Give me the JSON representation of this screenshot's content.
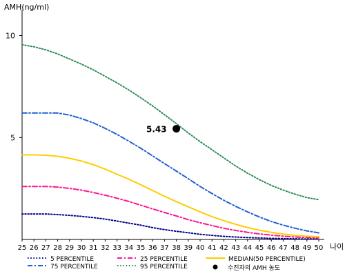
{
  "chart_data": {
    "type": "line",
    "ylabel": "AMH(ng/ml)",
    "xlabel": "나이",
    "xlim": [
      25,
      50
    ],
    "ylim": [
      0,
      11
    ],
    "yticks": [
      5,
      10
    ],
    "xticks": [
      25,
      26,
      27,
      28,
      29,
      30,
      31,
      32,
      33,
      34,
      35,
      36,
      37,
      38,
      39,
      40,
      41,
      42,
      43,
      44,
      45,
      46,
      47,
      48,
      49,
      50
    ],
    "grid": false,
    "legend_position": "bottom",
    "series": [
      {
        "name": "5 PERCENTILE",
        "color": "#00008b",
        "dash": "dot",
        "x": [
          25,
          26,
          27,
          28,
          29,
          30,
          31,
          32,
          33,
          34,
          35,
          36,
          37,
          38,
          39,
          40,
          41,
          42,
          43,
          44,
          45,
          46,
          47,
          48,
          49,
          50
        ],
        "y": [
          1.25,
          1.25,
          1.25,
          1.22,
          1.18,
          1.13,
          1.07,
          1.0,
          0.9,
          0.8,
          0.7,
          0.58,
          0.48,
          0.4,
          0.33,
          0.25,
          0.2,
          0.15,
          0.12,
          0.09,
          0.07,
          0.05,
          0.04,
          0.03,
          0.02,
          0.02
        ]
      },
      {
        "name": "25 PERCENTILE",
        "color": "#ff1493",
        "dash": "dashdot",
        "x": [
          25,
          26,
          27,
          28,
          29,
          30,
          31,
          32,
          33,
          34,
          35,
          36,
          37,
          38,
          39,
          40,
          41,
          42,
          43,
          44,
          45,
          46,
          47,
          48,
          49,
          50
        ],
        "y": [
          2.6,
          2.6,
          2.6,
          2.57,
          2.5,
          2.42,
          2.3,
          2.17,
          2.02,
          1.86,
          1.68,
          1.5,
          1.32,
          1.15,
          0.97,
          0.82,
          0.68,
          0.55,
          0.44,
          0.35,
          0.27,
          0.21,
          0.16,
          0.12,
          0.09,
          0.07
        ]
      },
      {
        "name": "MEDIAN(50 PERCENTILE)",
        "color": "#ffcc00",
        "dash": "solid",
        "x": [
          25,
          26,
          27,
          28,
          29,
          30,
          31,
          32,
          33,
          34,
          35,
          36,
          37,
          38,
          39,
          40,
          41,
          42,
          43,
          44,
          45,
          46,
          47,
          48,
          49,
          50
        ],
        "y": [
          4.15,
          4.15,
          4.13,
          4.08,
          3.98,
          3.85,
          3.67,
          3.45,
          3.2,
          2.95,
          2.68,
          2.4,
          2.12,
          1.85,
          1.6,
          1.35,
          1.12,
          0.92,
          0.74,
          0.58,
          0.45,
          0.35,
          0.26,
          0.2,
          0.16,
          0.13
        ]
      },
      {
        "name": "75 PERCENTILE",
        "color": "#1f5fd1",
        "dash": "dashdot",
        "x": [
          25,
          26,
          27,
          28,
          29,
          30,
          31,
          32,
          33,
          34,
          35,
          36,
          37,
          38,
          39,
          40,
          41,
          42,
          43,
          44,
          45,
          46,
          47,
          48,
          49,
          50
        ],
        "y": [
          6.2,
          6.2,
          6.2,
          6.2,
          6.1,
          5.93,
          5.72,
          5.45,
          5.15,
          4.82,
          4.47,
          4.1,
          3.72,
          3.35,
          2.98,
          2.6,
          2.25,
          1.92,
          1.62,
          1.35,
          1.1,
          0.88,
          0.7,
          0.55,
          0.42,
          0.32
        ]
      },
      {
        "name": "95 PERCENTILE",
        "color": "#2e8b57",
        "dash": "dot",
        "x": [
          25,
          26,
          27,
          28,
          29,
          30,
          31,
          32,
          33,
          34,
          35,
          36,
          37,
          38,
          39,
          40,
          41,
          42,
          43,
          44,
          45,
          46,
          47,
          48,
          49,
          50
        ],
        "y": [
          9.55,
          9.45,
          9.3,
          9.1,
          8.85,
          8.6,
          8.32,
          8.0,
          7.68,
          7.33,
          6.95,
          6.55,
          6.12,
          5.68,
          5.22,
          4.8,
          4.4,
          4.0,
          3.6,
          3.25,
          2.93,
          2.65,
          2.42,
          2.22,
          2.05,
          1.95
        ]
      }
    ],
    "points": [
      {
        "name": "수진자의 AMH 농도",
        "x": 38,
        "y": 5.43,
        "label": "5.43",
        "color": "#000000"
      }
    ]
  }
}
